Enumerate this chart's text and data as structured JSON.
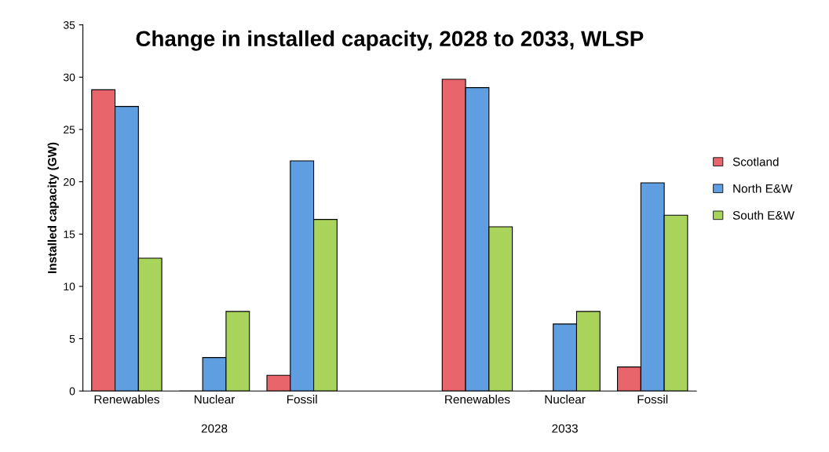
{
  "chart_data": {
    "type": "bar",
    "title": "Change in installed capacity, 2028 to 2033, WLSP",
    "ylabel": "Installed capacity (GW)",
    "categories": [
      "Renewables",
      "Nuclear",
      "Fossil",
      null,
      "Renewables",
      "Nuclear",
      "Fossil"
    ],
    "series": [
      {
        "name": "Scotland",
        "color": "#e8666b",
        "values": [
          28.8,
          0,
          1.5,
          null,
          29.8,
          0,
          2.3
        ]
      },
      {
        "name": "North E&W",
        "color": "#5f9ee0",
        "values": [
          27.2,
          3.2,
          22.0,
          null,
          29.0,
          6.4,
          19.9
        ]
      },
      {
        "name": "South E&W",
        "color": "#a9d45c",
        "values": [
          12.7,
          7.6,
          16.4,
          null,
          15.7,
          7.6,
          16.8
        ]
      }
    ],
    "annotations": [
      "2028",
      "2033"
    ],
    "ylim": [
      0,
      35
    ],
    "yticks": [
      0,
      5,
      10,
      15,
      20,
      25,
      30,
      35
    ],
    "grid": false,
    "legend": "right"
  }
}
